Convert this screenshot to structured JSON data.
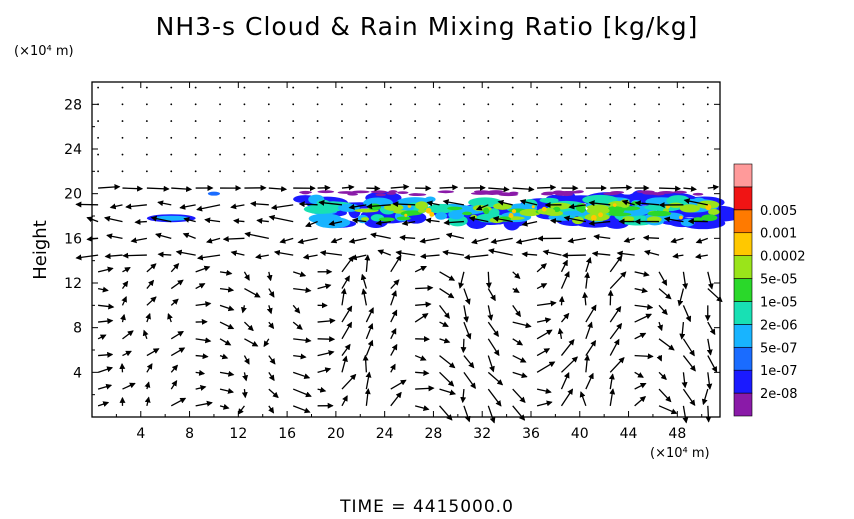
{
  "title": "NH3-s Cloud & Rain Mixing Ratio [kg/kg]",
  "y_unit": "(×10⁴ m)",
  "x_unit": "(×10⁴ m)",
  "time_label": "TIME = 4415000.0",
  "chart_data": {
    "type": "heatmap",
    "title": "NH3-s Cloud & Rain Mixing Ratio [kg/kg]",
    "xlabel": "",
    "ylabel": "Height",
    "x_unit": "(×10⁴ m)",
    "y_unit": "(×10⁴ m)",
    "xlim": [
      0,
      51.5
    ],
    "ylim": [
      0,
      30
    ],
    "x_ticks": [
      4,
      8,
      12,
      16,
      20,
      24,
      28,
      32,
      36,
      40,
      44,
      48
    ],
    "y_ticks": [
      4,
      8,
      12,
      16,
      20,
      24,
      28
    ],
    "colorbar": {
      "levels": [
        "2e-08",
        "1e-07",
        "5e-07",
        "2e-06",
        "1e-05",
        "5e-05",
        "0.0002",
        "0.001",
        "0.005"
      ],
      "colors": [
        "#8a1aa8",
        "#1a1aff",
        "#1a6cff",
        "#18b4ff",
        "#18e0b4",
        "#2ad82a",
        "#9ae41a",
        "#ffc800",
        "#ff7a00",
        "#f01414",
        "#ff9a9a"
      ]
    },
    "cloud_layer": {
      "x_range": [
        4.5,
        51.5
      ],
      "y_range": [
        16.5,
        20
      ],
      "peak_levels": [
        "1e-05",
        "5e-05",
        "0.0002"
      ]
    },
    "wind_vectors": "shown"
  }
}
